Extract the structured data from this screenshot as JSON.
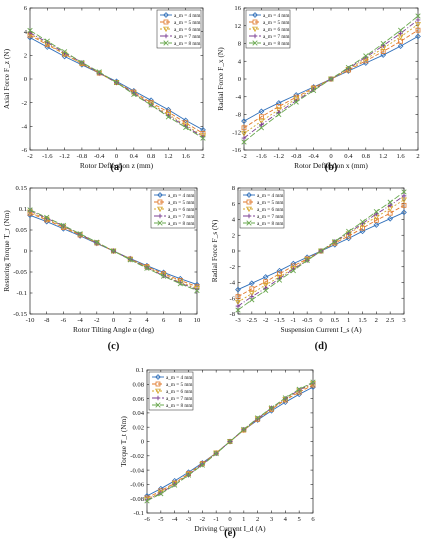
{
  "chart_data": [
    {
      "type": "line",
      "panel_label": "(a)",
      "xlabel": "Rotor Deflection z (mm)",
      "ylabel": "Axial Force F_z (N)",
      "xlim": [
        -2,
        2
      ],
      "ylim": [
        -6,
        6
      ],
      "xticks": [
        "-2",
        "-1.6",
        "-1.2",
        "-0.8",
        "-0.4",
        "0",
        "0.4",
        "0.8",
        "1.2",
        "1.6",
        "2"
      ],
      "yticks": [
        "6",
        "4",
        "2",
        "0",
        "-2",
        "-4",
        "-6"
      ],
      "x": [
        -2,
        -1.6,
        -1.2,
        -0.8,
        -0.4,
        0,
        0.4,
        0.8,
        1.2,
        1.6,
        2
      ],
      "legend": "top-right",
      "series": [
        {
          "name": "a_m = 4 mm",
          "values": [
            3.5,
            2.7,
            1.9,
            1.2,
            0.5,
            -0.2,
            -1.0,
            -1.8,
            -2.6,
            -3.5,
            -4.3
          ]
        },
        {
          "name": "a_m = 5 mm",
          "values": [
            3.7,
            2.9,
            2.1,
            1.3,
            0.5,
            -0.3,
            -1.1,
            -2.0,
            -2.8,
            -3.7,
            -4.6
          ]
        },
        {
          "name": "a_m = 6 mm",
          "values": [
            3.8,
            3.0,
            2.1,
            1.3,
            0.5,
            -0.3,
            -1.2,
            -2.1,
            -3.0,
            -3.9,
            -4.8
          ]
        },
        {
          "name": "a_m = 7 mm",
          "values": [
            3.9,
            3.1,
            2.2,
            1.4,
            0.5,
            -0.3,
            -1.2,
            -2.2,
            -3.1,
            -4.0,
            -4.9
          ]
        },
        {
          "name": "a_m = 8 mm",
          "values": [
            4.1,
            3.2,
            2.3,
            1.4,
            0.6,
            -0.3,
            -1.3,
            -2.2,
            -3.2,
            -4.1,
            -5.0
          ]
        }
      ]
    },
    {
      "type": "line",
      "panel_label": "(b)",
      "xlabel": "Rotor Deflection x (mm)",
      "ylabel": "Radial Force F_x (N)",
      "xlim": [
        -2,
        2
      ],
      "ylim": [
        -16,
        16
      ],
      "xticks": [
        "-2",
        "-1.6",
        "-1.2",
        "-0.8",
        "-0.4",
        "0",
        "0.4",
        "0.8",
        "1.2",
        "1.6",
        "2"
      ],
      "yticks": [
        "16",
        "12",
        "8",
        "4",
        "0",
        "-4",
        "-8",
        "-12",
        "-16"
      ],
      "x": [
        -2,
        -1.6,
        -1.2,
        -0.8,
        -0.4,
        0,
        0.4,
        0.8,
        1.2,
        1.6,
        2
      ],
      "legend": "top-left",
      "series": [
        {
          "name": "a_m = 4 mm",
          "values": [
            -9.5,
            -7.3,
            -5.4,
            -3.6,
            -1.8,
            0,
            1.8,
            3.6,
            5.4,
            7.4,
            9.6
          ]
        },
        {
          "name": "a_m = 5 mm",
          "values": [
            -11,
            -8.5,
            -6.2,
            -4.1,
            -2.0,
            0,
            2.0,
            4.1,
            6.2,
            8.5,
            11
          ]
        },
        {
          "name": "a_m = 6 mm",
          "values": [
            -12.3,
            -9.5,
            -6.9,
            -4.5,
            -2.2,
            0,
            2.2,
            4.5,
            6.9,
            9.5,
            12.3
          ]
        },
        {
          "name": "a_m = 7 mm",
          "values": [
            -13.3,
            -10.3,
            -7.5,
            -4.9,
            -2.4,
            0,
            2.4,
            4.9,
            7.5,
            10.3,
            13.3
          ]
        },
        {
          "name": "a_m = 8 mm",
          "values": [
            -14.2,
            -11,
            -8,
            -5.2,
            -2.6,
            0,
            2.6,
            5.2,
            8,
            11,
            14.2
          ]
        }
      ]
    },
    {
      "type": "line",
      "panel_label": "(c)",
      "xlabel": "Rotor Tilting Angle α (deg)",
      "ylabel": "Restoring Torque T_r (Nm)",
      "xlim": [
        -10,
        10
      ],
      "ylim": [
        -0.15,
        0.15
      ],
      "xticks": [
        "-10",
        "-8",
        "-6",
        "-4",
        "-2",
        "0",
        "2",
        "4",
        "6",
        "8",
        "10"
      ],
      "yticks": [
        "0.15",
        "0.1",
        "0.05",
        "0",
        "-0.05",
        "-0.1",
        "-0.15"
      ],
      "x": [
        -10,
        -8,
        -6,
        -4,
        -2,
        0,
        2,
        4,
        6,
        8,
        10
      ],
      "legend": "top-right",
      "series": [
        {
          "name": "a_m = 4 mm",
          "values": [
            0.085,
            0.07,
            0.053,
            0.036,
            0.018,
            0,
            -0.018,
            -0.035,
            -0.051,
            -0.066,
            -0.08
          ]
        },
        {
          "name": "a_m = 5 mm",
          "values": [
            0.09,
            0.074,
            0.056,
            0.038,
            0.019,
            0,
            -0.019,
            -0.037,
            -0.054,
            -0.07,
            -0.085
          ]
        },
        {
          "name": "a_m = 6 mm",
          "values": [
            0.093,
            0.076,
            0.058,
            0.039,
            0.02,
            0,
            -0.02,
            -0.039,
            -0.057,
            -0.074,
            -0.089
          ]
        },
        {
          "name": "a_m = 7 mm",
          "values": [
            0.096,
            0.078,
            0.06,
            0.04,
            0.02,
            0,
            -0.02,
            -0.04,
            -0.059,
            -0.076,
            -0.092
          ]
        },
        {
          "name": "a_m = 8 mm",
          "values": [
            0.098,
            0.08,
            0.061,
            0.041,
            0.021,
            0,
            -0.021,
            -0.041,
            -0.06,
            -0.078,
            -0.094
          ]
        }
      ]
    },
    {
      "type": "line",
      "panel_label": "(d)",
      "xlabel": "Suspension Current I_s (A)",
      "ylabel": "Radial Force F_s (N)",
      "xlim": [
        -3,
        3
      ],
      "ylim": [
        -8,
        8
      ],
      "xticks": [
        "-3",
        "-2.5",
        "-2",
        "-1.5",
        "-1",
        "-0.5",
        "0",
        "0.5",
        "1",
        "1.5",
        "2",
        "2.5",
        "3"
      ],
      "yticks": [
        "8",
        "6",
        "4",
        "2",
        "0",
        "-2",
        "-4",
        "-6",
        "-8"
      ],
      "x": [
        -3,
        -2.5,
        -2,
        -1.5,
        -1,
        -0.5,
        0,
        0.5,
        1,
        1.5,
        2,
        2.5,
        3
      ],
      "legend": "top-left",
      "series": [
        {
          "name": "a_m = 4 mm",
          "values": [
            -4.9,
            -4.1,
            -3.3,
            -2.5,
            -1.6,
            -0.8,
            0,
            0.8,
            1.6,
            2.5,
            3.3,
            4.1,
            4.9
          ]
        },
        {
          "name": "a_m = 5 mm",
          "values": [
            -5.8,
            -4.8,
            -3.9,
            -2.9,
            -1.9,
            -1.0,
            0,
            1.0,
            1.9,
            2.9,
            3.9,
            4.8,
            5.8
          ]
        },
        {
          "name": "a_m = 6 mm",
          "values": [
            -6.5,
            -5.4,
            -4.3,
            -3.3,
            -2.2,
            -1.1,
            0,
            1.1,
            2.2,
            3.3,
            4.3,
            5.4,
            6.5
          ]
        },
        {
          "name": "a_m = 7 mm",
          "values": [
            -7.0,
            -5.8,
            -4.7,
            -3.5,
            -2.3,
            -1.2,
            0,
            1.2,
            2.3,
            3.5,
            4.7,
            5.8,
            7.0
          ]
        },
        {
          "name": "a_m = 8 mm",
          "values": [
            -7.5,
            -6.2,
            -5.0,
            -3.7,
            -2.5,
            -1.2,
            0,
            1.2,
            2.5,
            3.7,
            5.0,
            6.2,
            7.5
          ]
        }
      ]
    },
    {
      "type": "line",
      "panel_label": "(e)",
      "xlabel": "Driving Current I_d (A)",
      "ylabel": "Torque T_t (Nm)",
      "xlim": [
        -6,
        6
      ],
      "ylim": [
        -0.1,
        0.1
      ],
      "xticks": [
        "-6",
        "-5",
        "-4",
        "-3",
        "-2",
        "-1",
        "0",
        "1",
        "2",
        "3",
        "4",
        "5",
        "6"
      ],
      "yticks": [
        "0.1",
        "0.08",
        "0.06",
        "0.04",
        "0.02",
        "0",
        "-0.02",
        "-0.04",
        "-0.06",
        "-0.08",
        "-0.1"
      ],
      "x": [
        -6,
        -5,
        -4,
        -3,
        -2,
        -1,
        0,
        1,
        2,
        3,
        4,
        5,
        6
      ],
      "legend": "top-left",
      "series": [
        {
          "name": "a_m = 4 mm",
          "values": [
            -0.076,
            -0.066,
            -0.055,
            -0.043,
            -0.03,
            -0.016,
            0,
            0.016,
            0.03,
            0.043,
            0.055,
            0.066,
            0.076
          ]
        },
        {
          "name": "a_m = 5 mm",
          "values": [
            -0.079,
            -0.069,
            -0.058,
            -0.045,
            -0.031,
            -0.016,
            0,
            0.016,
            0.031,
            0.045,
            0.058,
            0.069,
            0.079
          ]
        },
        {
          "name": "a_m = 6 mm",
          "values": [
            -0.081,
            -0.071,
            -0.059,
            -0.046,
            -0.032,
            -0.016,
            0,
            0.016,
            0.032,
            0.046,
            0.059,
            0.071,
            0.081
          ]
        },
        {
          "name": "a_m = 7 mm",
          "values": [
            -0.082,
            -0.072,
            -0.06,
            -0.047,
            -0.032,
            -0.017,
            0,
            0.017,
            0.032,
            0.047,
            0.06,
            0.072,
            0.082
          ]
        },
        {
          "name": "a_m = 8 mm",
          "values": [
            -0.083,
            -0.073,
            -0.061,
            -0.047,
            -0.033,
            -0.017,
            0,
            0.017,
            0.033,
            0.047,
            0.061,
            0.073,
            0.083
          ]
        }
      ]
    }
  ],
  "series_styles": [
    {
      "color": "#2f6fba",
      "marker": "diamond",
      "dash": "none"
    },
    {
      "color": "#e0782a",
      "marker": "square",
      "dash": "4,2"
    },
    {
      "color": "#d4a62a",
      "marker": "triangle",
      "dash": "2,2"
    },
    {
      "color": "#7b3f93",
      "marker": "plus",
      "dash": "5,2,1,2"
    },
    {
      "color": "#6aa84f",
      "marker": "x",
      "dash": "6,2"
    }
  ]
}
